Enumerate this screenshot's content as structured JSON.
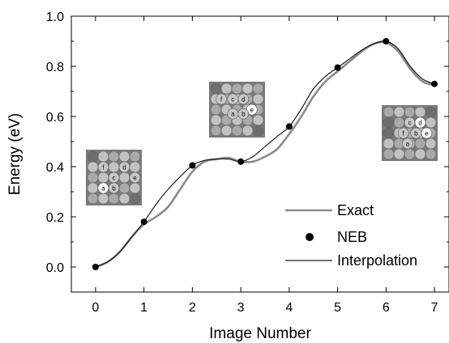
{
  "chart_data": {
    "type": "line",
    "title": "",
    "xlabel": "Image Number",
    "ylabel": "Energy  (eV)",
    "xlim": [
      -0.5,
      7.3
    ],
    "ylim": [
      -0.1,
      1.0
    ],
    "x_ticks": [
      0,
      1,
      2,
      3,
      4,
      5,
      6,
      7
    ],
    "y_ticks": [
      0.0,
      0.2,
      0.4,
      0.6,
      0.8,
      1.0
    ],
    "x_tick_labels": [
      "0",
      "1",
      "2",
      "3",
      "4",
      "5",
      "6",
      "7"
    ],
    "y_tick_labels": [
      "0.0",
      "0.2",
      "0.4",
      "0.6",
      "0.8",
      "1.0"
    ],
    "grid": false,
    "legend_position": "bottom-right",
    "series": [
      {
        "name": "Exact",
        "style": "thick-gray-line",
        "color": "#8a8a8a",
        "x": [
          0,
          0.25,
          0.5,
          0.75,
          1.0,
          1.25,
          1.5,
          1.75,
          2.0,
          2.25,
          2.5,
          2.75,
          3.0,
          3.25,
          3.5,
          3.75,
          4.0,
          4.25,
          4.5,
          4.75,
          5.0,
          5.25,
          5.5,
          5.75,
          6.0,
          6.25,
          6.5,
          6.75,
          7.0
        ],
        "y": [
          0.0,
          0.02,
          0.06,
          0.12,
          0.17,
          0.2,
          0.24,
          0.31,
          0.38,
          0.42,
          0.43,
          0.435,
          0.42,
          0.42,
          0.44,
          0.47,
          0.53,
          0.6,
          0.68,
          0.74,
          0.78,
          0.82,
          0.86,
          0.89,
          0.895,
          0.86,
          0.79,
          0.74,
          0.725
        ]
      },
      {
        "name": "NEB",
        "style": "black-dots",
        "color": "#000000",
        "x": [
          0,
          1,
          2,
          3,
          4,
          5,
          6,
          7
        ],
        "y": [
          0.0,
          0.18,
          0.405,
          0.42,
          0.56,
          0.795,
          0.9,
          0.73
        ]
      },
      {
        "name": "Interpolation",
        "style": "thin-dark-line",
        "color": "#1a1a1a",
        "x": [
          0,
          0.25,
          0.5,
          0.75,
          1.0,
          1.25,
          1.5,
          1.75,
          2.0,
          2.25,
          2.5,
          2.75,
          3.0,
          3.25,
          3.5,
          3.75,
          4.0,
          4.25,
          4.5,
          4.75,
          5.0,
          5.25,
          5.5,
          5.75,
          6.0,
          6.25,
          6.5,
          6.75,
          7.0
        ],
        "y": [
          0.0,
          0.02,
          0.06,
          0.12,
          0.18,
          0.25,
          0.31,
          0.36,
          0.405,
          0.425,
          0.43,
          0.43,
          0.42,
          0.44,
          0.48,
          0.52,
          0.56,
          0.63,
          0.71,
          0.76,
          0.795,
          0.83,
          0.865,
          0.89,
          0.9,
          0.87,
          0.8,
          0.75,
          0.73
        ]
      }
    ],
    "insets": [
      {
        "name": "configuration-initial",
        "labels": [
          "f",
          "d",
          "c",
          "e",
          "a",
          "b"
        ]
      },
      {
        "name": "configuration-middle",
        "labels": [
          "f",
          "c",
          "d",
          "e",
          "a",
          "b"
        ]
      },
      {
        "name": "configuration-final",
        "labels": [
          "c",
          "d",
          "f",
          "b",
          "e",
          "a"
        ]
      }
    ]
  }
}
